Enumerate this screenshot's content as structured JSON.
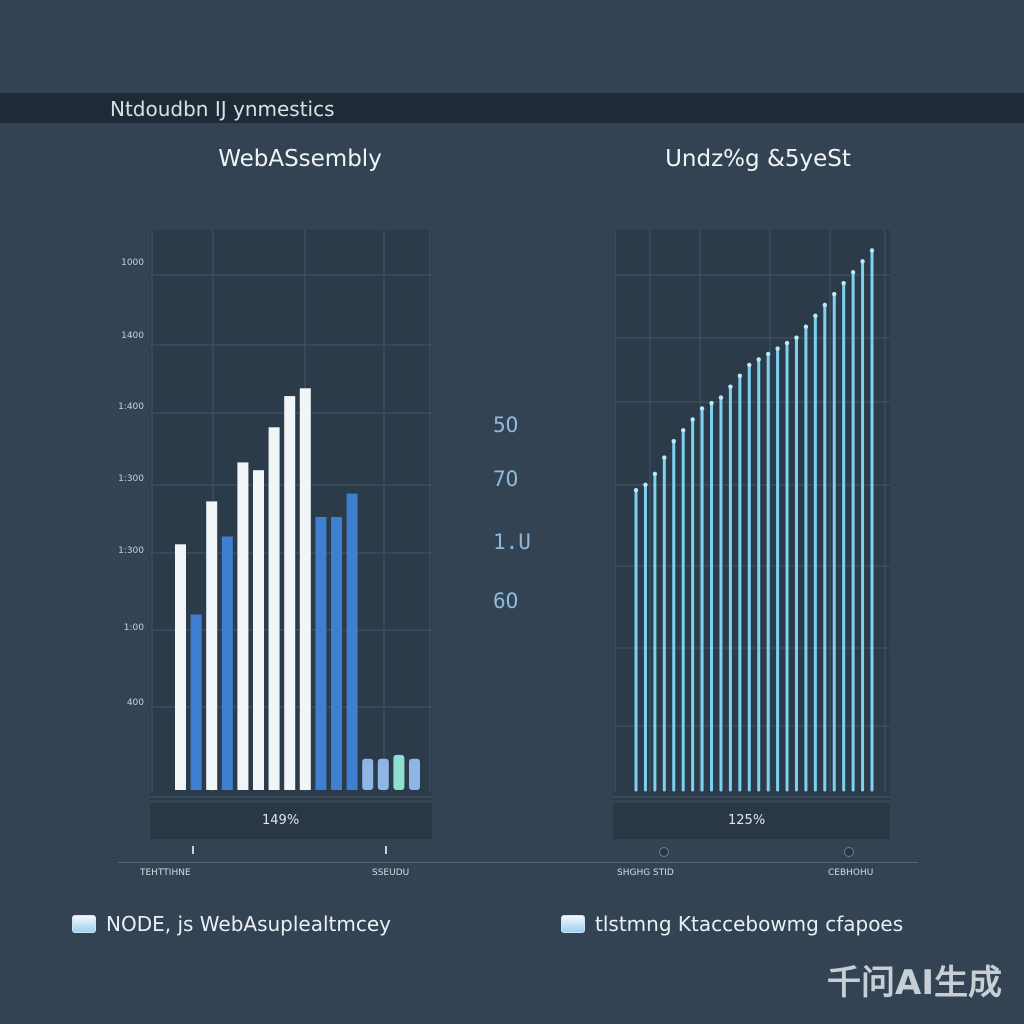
{
  "header": {
    "title": "Ntdoudbn IJ ynmestics"
  },
  "colors": {
    "background": "#334354",
    "panel": "#2c3b49",
    "bar_white": "#f2f5f8",
    "bar_blue": "#3f7fd0",
    "bar_lightblue": "#8fb4e6",
    "bar_teal": "#8de0cf",
    "bar_cyan": "#7fd1f2"
  },
  "middle_labels": [
    "5O",
    "7O",
    "1.U",
    "6O"
  ],
  "legend": {
    "left": {
      "icon": "legend-swatch-icon",
      "label": "NODE, js  WebAsuplealtmcey"
    },
    "right": {
      "icon": "legend-swatch-icon",
      "label": "tlstmng Ktaccebowmg cfapoes"
    }
  },
  "watermark": "千问AI生成",
  "chart_data": [
    {
      "type": "bar",
      "title": "WebASsembly",
      "ytick_labels": [
        "1000",
        "1400",
        "1:400",
        "1:300",
        "1:300",
        "1:00",
        "400"
      ],
      "ylim": [
        0,
        100
      ],
      "footer_value": "149%",
      "bottom_labels": [
        "TEHTTIHNE",
        "SSEUDU"
      ],
      "series": [
        {
          "name": "white",
          "color": "#f2f5f8",
          "values": [
            [
              1,
              63
            ],
            [
              3,
              74
            ],
            [
              5,
              84
            ],
            [
              6,
              82
            ],
            [
              7,
              93
            ],
            [
              8,
              101
            ],
            [
              9,
              103
            ]
          ]
        },
        {
          "name": "blue",
          "color": "#3f7fd0",
          "values": [
            [
              2,
              45
            ],
            [
              4,
              65
            ],
            [
              10,
              70
            ],
            [
              11,
              70
            ],
            [
              12,
              76
            ]
          ]
        },
        {
          "name": "light-blue",
          "color": "#8fb4e6",
          "values": [
            [
              13,
              8
            ],
            [
              14,
              8
            ],
            [
              16,
              8
            ]
          ]
        },
        {
          "name": "teal",
          "color": "#8de0cf",
          "values": [
            [
              15,
              9
            ]
          ]
        }
      ]
    },
    {
      "type": "bar",
      "title": "Undz%g &5yeSt",
      "ylim": [
        0,
        100
      ],
      "footer_value": "125%",
      "bottom_labels": [
        "SHGHG STID",
        "CEBHOHU"
      ],
      "series": [
        {
          "name": "cyan",
          "color": "#7fd1f2",
          "values": [
            55,
            56,
            58,
            61,
            64,
            66,
            68,
            70,
            71,
            72,
            74,
            76,
            78,
            79,
            80,
            81,
            82,
            83,
            85,
            87,
            89,
            91,
            93,
            95,
            97,
            99
          ]
        }
      ]
    }
  ]
}
